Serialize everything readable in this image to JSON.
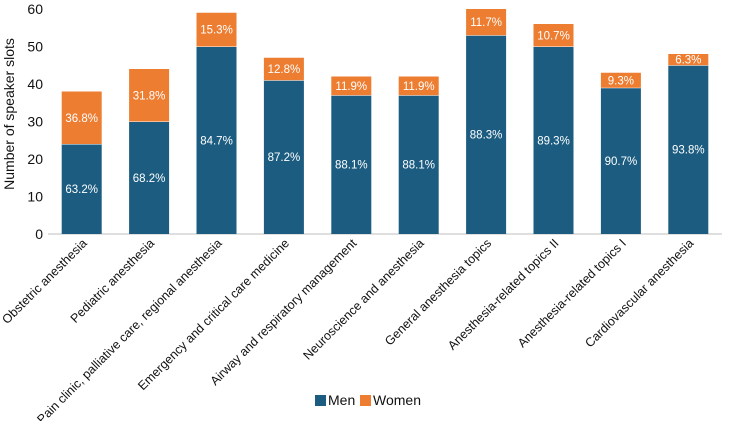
{
  "chart_data": {
    "type": "bar",
    "stacked": true,
    "ylabel": "Number of speaker slots",
    "xlabel": "",
    "ylim": [
      0,
      60
    ],
    "yticks": [
      0,
      10,
      20,
      30,
      40,
      50,
      60
    ],
    "grid": false,
    "legend_position": "bottom-center",
    "categories": [
      "Obstetric anesthesia",
      "Pediatric anesthesia",
      "Pain clinic, palliative care, regional anesthesia",
      "Emergency and critical care medicine",
      "Airway and respiratory management",
      "Neuroscience and anesthesia",
      "General anesthesia topics",
      "Anesthesia-related topics II",
      "Anesthesia-related topics I",
      "Cardiovascular anesthesia"
    ],
    "series": [
      {
        "name": "Men",
        "color": "#1b5c80",
        "values": [
          24,
          30,
          50,
          41,
          37,
          37,
          53,
          50,
          39,
          45
        ],
        "labels": [
          "63.2%",
          "68.2%",
          "84.7%",
          "87.2%",
          "88.1%",
          "88.1%",
          "88.3%",
          "89.3%",
          "90.7%",
          "93.8%"
        ]
      },
      {
        "name": "Women",
        "color": "#ed7d31",
        "values": [
          14,
          14,
          9,
          6,
          5,
          5,
          7,
          6,
          4,
          3
        ],
        "labels": [
          "36.8%",
          "31.8%",
          "15.3%",
          "12.8%",
          "11.9%",
          "11.9%",
          "11.7%",
          "10.7%",
          "9.3%",
          "6.3%"
        ]
      }
    ]
  }
}
